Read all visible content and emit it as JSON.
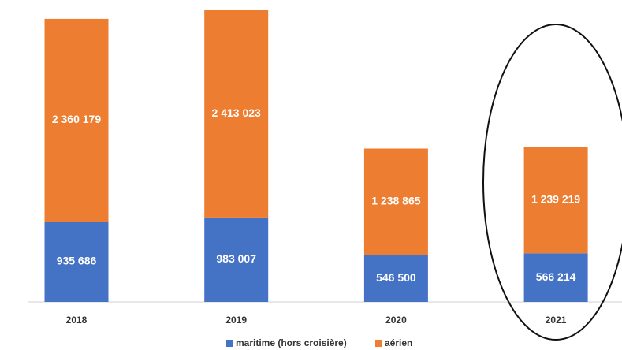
{
  "chart_data": {
    "type": "bar",
    "stacked": true,
    "categories": [
      "2018",
      "2019",
      "2020",
      "2021"
    ],
    "series": [
      {
        "name": "maritime (hors croisière)",
        "color": "#4472c4",
        "values": [
          935686,
          983007,
          546500,
          566214
        ],
        "value_labels": [
          "935 686",
          "983 007",
          "546 500",
          "566 214"
        ]
      },
      {
        "name": "aérien",
        "color": "#ed7d31",
        "values": [
          2360179,
          2413023,
          1238865,
          1239219
        ],
        "value_labels": [
          "2 360 179",
          "2 413 023",
          "1 238 865",
          "1 239 219"
        ]
      }
    ]
  }
}
